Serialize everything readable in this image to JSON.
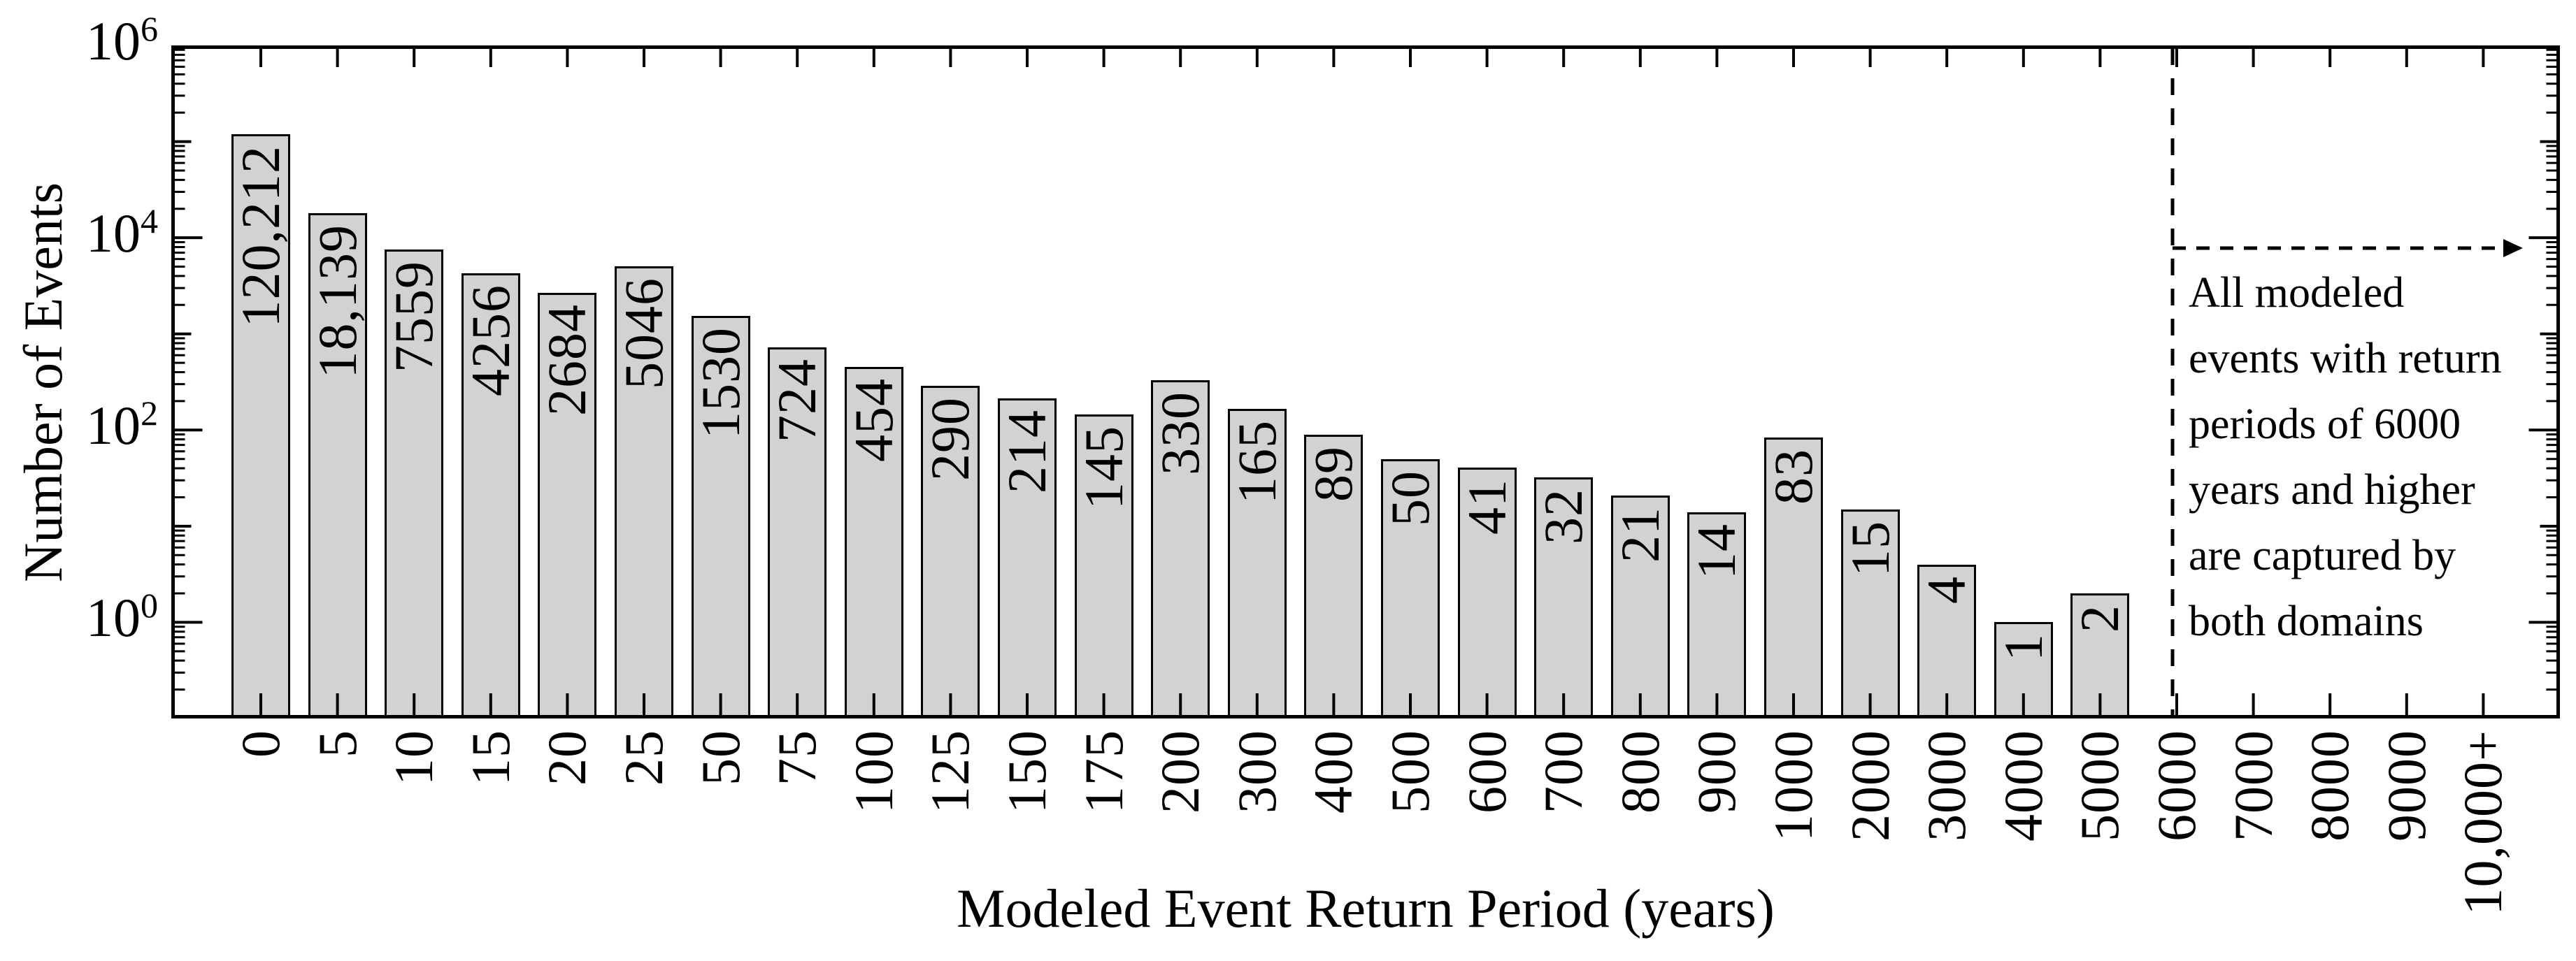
{
  "figure": {
    "background_color": "#ffffff",
    "bar_fill_color": "#d2d2d2",
    "bar_edge_color": "#000000",
    "axis_color": "#000000"
  },
  "chart_data": {
    "type": "bar",
    "title": "",
    "xlabel": "Modeled Event Return Period (years)",
    "ylabel": "Number of Events",
    "yscale": "log",
    "ylim": [
      0.1,
      1000000
    ],
    "ytick_base": "10",
    "ytick_exponents": [
      0,
      2,
      4,
      6
    ],
    "grid": "off",
    "legend": "none",
    "categories": [
      "0",
      "5",
      "10",
      "15",
      "20",
      "25",
      "50",
      "75",
      "100",
      "125",
      "150",
      "175",
      "200",
      "300",
      "400",
      "500",
      "600",
      "700",
      "800",
      "900",
      "1000",
      "2000",
      "3000",
      "4000",
      "5000",
      "6000",
      "7000",
      "8000",
      "9000",
      "10,000+"
    ],
    "values": [
      120212,
      18139,
      7559,
      4256,
      2684,
      5046,
      1530,
      724,
      454,
      290,
      214,
      145,
      330,
      165,
      89,
      50,
      41,
      32,
      21,
      14,
      83,
      15,
      4,
      1,
      2,
      null,
      null,
      null,
      null,
      null
    ],
    "bar_labels": [
      "120,212",
      "18,139",
      "7559",
      "4256",
      "2684",
      "5046",
      "1530",
      "724",
      "454",
      "290",
      "214",
      "145",
      "330",
      "165",
      "89",
      "50",
      "41",
      "32",
      "21",
      "14",
      "83",
      "15",
      "4",
      "1",
      "2",
      null,
      null,
      null,
      null,
      null
    ],
    "annotation": {
      "boundary_category": "6000",
      "lines": [
        "All modeled",
        "events with return",
        "periods of 6000",
        "years and higher",
        "are captured by",
        "both domains"
      ],
      "text": "All modeled events with return periods of 6000 years and higher are captured by both domains",
      "marker_style": "dashed vertical line at 6000 with dashed horizontal arrow pointing right"
    }
  }
}
